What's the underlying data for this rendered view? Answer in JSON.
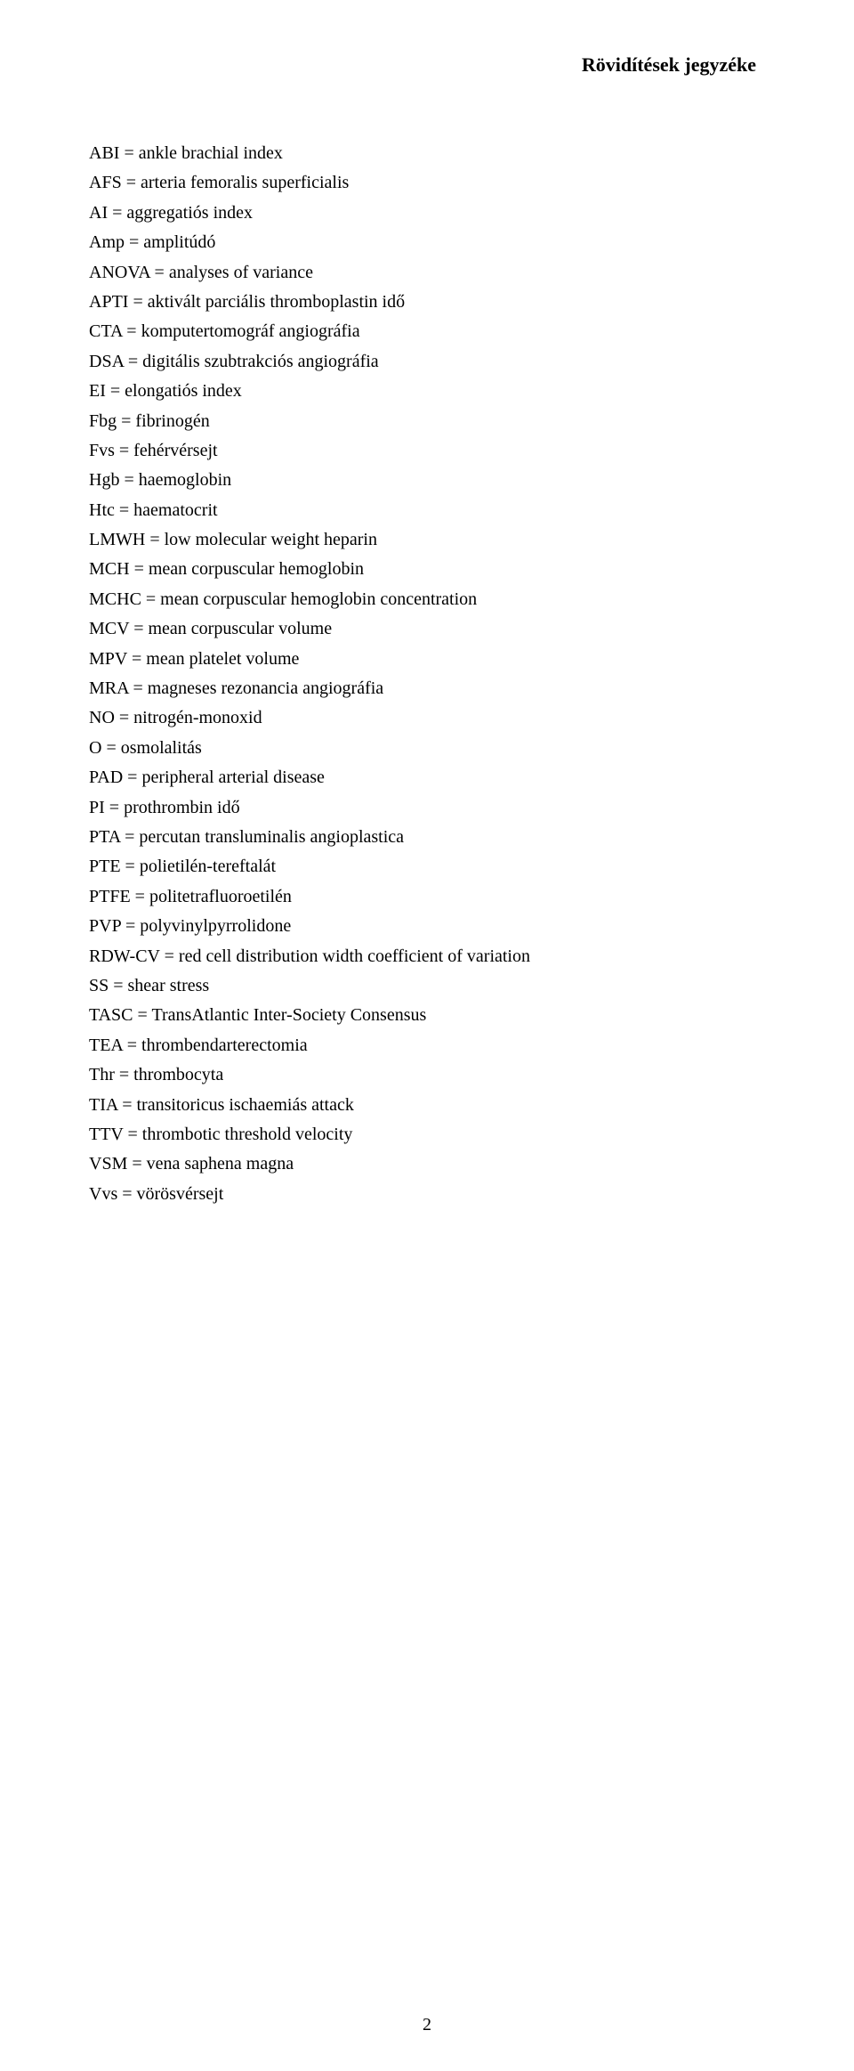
{
  "title": "Rövidítések jegyzéke",
  "pageNumber": "2",
  "abbreviations": [
    "ABI = ankle brachial index",
    "AFS = arteria femoralis superficialis",
    "AI = aggregatiós index",
    "Amp = amplitúdó",
    "ANOVA = analyses of variance",
    "APTI = aktivált parciális thromboplastin idő",
    "CTA = komputertomográf angiográfia",
    "DSA = digitális szubtrakciós angiográfia",
    "EI = elongatiós index",
    "Fbg = fibrinogén",
    "Fvs = fehérvérsejt",
    "Hgb = haemoglobin",
    "Htc = haematocrit",
    "LMWH = low molecular weight heparin",
    "MCH = mean corpuscular hemoglobin",
    "MCHC = mean corpuscular hemoglobin concentration",
    "MCV = mean corpuscular volume",
    "MPV = mean platelet volume",
    "MRA = magneses rezonancia angiográfia",
    "NO = nitrogén-monoxid",
    "O = osmolalitás",
    "PAD = peripheral arterial disease",
    "PI = prothrombin idő",
    "PTA = percutan transluminalis angioplastica",
    "PTE = polietilén-tereftalát",
    "PTFE = politetrafluoroetilén",
    "PVP = polyvinylpyrrolidone",
    "RDW-CV = red cell distribution width coefficient of variation",
    "SS = shear stress",
    "TASC = TransAtlantic Inter-Society Consensus",
    "TEA = thrombendarterectomia",
    "Thr = thrombocyta",
    "TIA = transitoricus ischaemiás attack",
    "TTV = thrombotic threshold velocity",
    "VSM = vena saphena magna",
    "Vvs = vörösvérsejt"
  ]
}
